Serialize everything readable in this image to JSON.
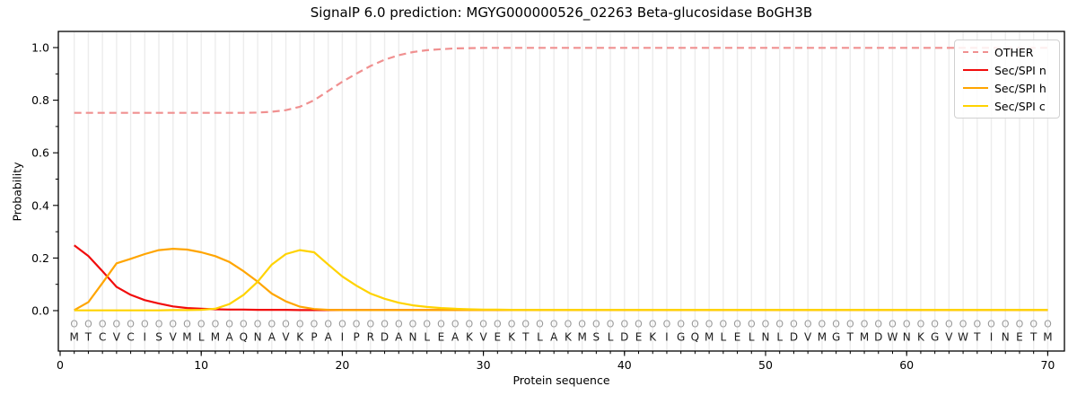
{
  "title": "SignalP 6.0 prediction: MGYG000000526_02263 Beta-glucosidase BoGH3B",
  "axes": {
    "xlabel": "Protein sequence",
    "ylabel": "Probability",
    "x_ticks": [
      {
        "label": "0",
        "value": 0
      },
      {
        "label": "10",
        "value": 10
      },
      {
        "label": "20",
        "value": 20
      },
      {
        "label": "30",
        "value": 30
      },
      {
        "label": "40",
        "value": 40
      },
      {
        "label": "50",
        "value": 50
      },
      {
        "label": "60",
        "value": 60
      },
      {
        "label": "70",
        "value": 70
      }
    ],
    "y_ticks": [
      {
        "label": "0.0",
        "value": 0.0
      },
      {
        "label": "0.2",
        "value": 0.2
      },
      {
        "label": "0.4",
        "value": 0.4
      },
      {
        "label": "0.6",
        "value": 0.6
      },
      {
        "label": "0.8",
        "value": 0.8
      },
      {
        "label": "1.0",
        "value": 1.0
      }
    ],
    "y_minor_ticks": [
      0.1,
      0.3,
      0.5,
      0.7,
      0.9
    ]
  },
  "legend": {
    "items": [
      {
        "label": "OTHER",
        "color": "#f09090",
        "dashed": true
      },
      {
        "label": "Sec/SPI n",
        "color": "#f10c0c",
        "dashed": false
      },
      {
        "label": "Sec/SPI h",
        "color": "#ffa500",
        "dashed": false
      },
      {
        "label": "Sec/SPI c",
        "color": "#ffd300",
        "dashed": false
      }
    ]
  },
  "sequence": {
    "residues": "MTCVCISVMLMAQNAVKPAIPRDANLEAKVEKTLAKMSLDEKIGQMLELNLDVMGTMDWNKGVWTINETM",
    "marker_char": "O",
    "marker_color": "#999999",
    "letter_color": "#1a1a1a"
  },
  "colors": {
    "grid": "#ececec",
    "spine": "#000000"
  },
  "chart_data": {
    "type": "line",
    "title": "SignalP 6.0 prediction: MGYG000000526_02263 Beta-glucosidase BoGH3B",
    "xlabel": "Protein sequence",
    "ylabel": "Probability",
    "x_start": 1,
    "x_end": 70,
    "xlim": [
      -0.15,
      71.2
    ],
    "ylim": [
      -0.15,
      1.06
    ],
    "grid": "vertical-per-residue",
    "legend_position": "upper right",
    "series": [
      {
        "name": "OTHER",
        "color": "#f09090",
        "style": "dashed",
        "values": [
          0.752,
          0.752,
          0.752,
          0.752,
          0.752,
          0.752,
          0.752,
          0.752,
          0.752,
          0.752,
          0.752,
          0.752,
          0.752,
          0.753,
          0.756,
          0.762,
          0.775,
          0.8,
          0.835,
          0.87,
          0.901,
          0.93,
          0.954,
          0.971,
          0.983,
          0.99,
          0.994,
          0.997,
          0.998,
          0.999,
          0.999,
          0.999,
          0.999,
          0.999,
          0.999,
          0.999,
          0.999,
          0.999,
          0.999,
          0.999,
          0.999,
          0.999,
          0.999,
          0.999,
          0.999,
          0.999,
          0.999,
          0.999,
          0.999,
          0.999,
          0.999,
          0.999,
          0.999,
          0.999,
          0.999,
          0.999,
          0.999,
          0.999,
          0.999,
          0.999,
          0.999,
          0.999,
          0.999,
          0.999,
          0.999,
          0.999,
          0.999,
          0.999,
          0.999,
          0.999
        ]
      },
      {
        "name": "Sec/SPI n",
        "color": "#f10c0c",
        "style": "solid",
        "values": [
          0.248,
          0.208,
          0.15,
          0.09,
          0.06,
          0.04,
          0.027,
          0.016,
          0.01,
          0.007,
          0.005,
          0.004,
          0.004,
          0.003,
          0.003,
          0.003,
          0.002,
          0.002,
          0.002,
          0.002,
          0.002,
          0.002,
          0.002,
          0.002,
          0.002,
          0.002,
          0.002,
          0.002,
          0.002,
          0.002,
          0.002,
          0.002,
          0.002,
          0.002,
          0.002,
          0.002,
          0.002,
          0.002,
          0.002,
          0.002,
          0.002,
          0.002,
          0.002,
          0.002,
          0.002,
          0.002,
          0.002,
          0.002,
          0.002,
          0.002,
          0.002,
          0.002,
          0.002,
          0.002,
          0.002,
          0.002,
          0.002,
          0.002,
          0.002,
          0.002,
          0.002,
          0.002,
          0.002,
          0.002,
          0.002,
          0.002,
          0.002,
          0.002,
          0.002,
          0.002
        ]
      },
      {
        "name": "Sec/SPI h",
        "color": "#ffa500",
        "style": "solid",
        "values": [
          0.002,
          0.032,
          0.105,
          0.18,
          0.197,
          0.215,
          0.23,
          0.235,
          0.232,
          0.222,
          0.207,
          0.185,
          0.15,
          0.11,
          0.065,
          0.035,
          0.015,
          0.006,
          0.003,
          0.002,
          0.002,
          0.002,
          0.002,
          0.002,
          0.002,
          0.002,
          0.002,
          0.002,
          0.002,
          0.002,
          0.002,
          0.002,
          0.002,
          0.002,
          0.002,
          0.002,
          0.002,
          0.002,
          0.002,
          0.002,
          0.002,
          0.002,
          0.002,
          0.002,
          0.002,
          0.002,
          0.002,
          0.002,
          0.002,
          0.002,
          0.002,
          0.002,
          0.002,
          0.002,
          0.002,
          0.002,
          0.002,
          0.002,
          0.002,
          0.002,
          0.002,
          0.002,
          0.002,
          0.002,
          0.002,
          0.002,
          0.002,
          0.002,
          0.002,
          0.002
        ]
      },
      {
        "name": "Sec/SPI c",
        "color": "#ffd300",
        "style": "solid",
        "values": [
          0.001,
          0.001,
          0.001,
          0.001,
          0.001,
          0.001,
          0.001,
          0.002,
          0.002,
          0.003,
          0.007,
          0.025,
          0.06,
          0.11,
          0.175,
          0.215,
          0.23,
          0.222,
          0.175,
          0.13,
          0.095,
          0.065,
          0.045,
          0.03,
          0.02,
          0.014,
          0.01,
          0.007,
          0.005,
          0.004,
          0.004,
          0.003,
          0.003,
          0.003,
          0.003,
          0.003,
          0.003,
          0.003,
          0.003,
          0.003,
          0.003,
          0.003,
          0.003,
          0.003,
          0.003,
          0.003,
          0.003,
          0.003,
          0.003,
          0.003,
          0.003,
          0.003,
          0.003,
          0.003,
          0.003,
          0.003,
          0.003,
          0.003,
          0.003,
          0.003,
          0.003,
          0.003,
          0.003,
          0.003,
          0.003,
          0.003,
          0.003,
          0.003,
          0.003,
          0.003
        ]
      }
    ],
    "sequence_row": "MTCVCISVMLMAQNAVKPAIPRDANLEAKVEKTLAKMSLDEKIGQMLELNLDVMGTMDWNKGVWTINETM",
    "tag_row_char": "O"
  }
}
